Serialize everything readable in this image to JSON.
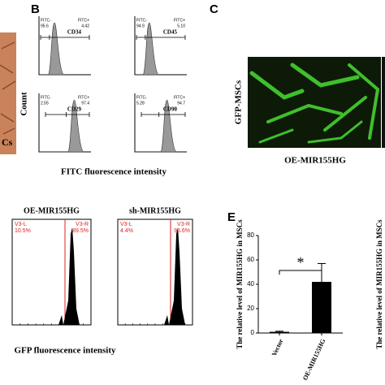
{
  "panel_a": {
    "label_fragment": "Cs"
  },
  "panel_b": {
    "label": "B",
    "y_label": "Count",
    "x_label": "FITC fluorescence intensity",
    "plots": [
      {
        "marker": "CD34",
        "neg_label": "FITC-",
        "neg_value": "95.6",
        "pos_label": "FITC+",
        "pos_value": "4.42"
      },
      {
        "marker": "CD45",
        "neg_label": "FITC-",
        "neg_value": "94.9",
        "pos_label": "FITC+",
        "pos_value": "5.10"
      },
      {
        "marker": "CD29",
        "neg_label": "FITC-",
        "neg_value": "2.55",
        "pos_label": "FITC+",
        "pos_value": "97.4"
      },
      {
        "marker": "CD90",
        "neg_label": "FITC-",
        "neg_value": "5.28",
        "pos_label": "FITC+",
        "pos_value": "94.7"
      }
    ]
  },
  "panel_c": {
    "label": "C",
    "y_label": "GFP-MSCs",
    "x_label": "OE-MIR155HG"
  },
  "panel_d": {
    "x_label": "GFP fluorescence intensity",
    "plots": [
      {
        "title": "OE-MIR155HG",
        "left_gate": "V3-L",
        "left_value": "10.5%",
        "right_gate": "V3-R",
        "right_value": "89.5%"
      },
      {
        "title": "sh-MIR155HG",
        "left_gate": "V3-L",
        "left_value": "4.4%",
        "right_gate": "V3-R",
        "right_value": "95.6%"
      }
    ]
  },
  "panel_e": {
    "label": "E",
    "y_label": "The relative level of MIR155HG in MSCs",
    "significance": "*",
    "categories": [
      "Vector",
      "OE-MIR155HG"
    ],
    "values": [
      1,
      42
    ],
    "errors": [
      0.5,
      15
    ],
    "ylim": [
      0,
      80
    ],
    "yticks": [
      0,
      20,
      40,
      60,
      80
    ]
  },
  "panel_f": {
    "y_label": "The relative level of MIR155HG in MSCs"
  }
}
